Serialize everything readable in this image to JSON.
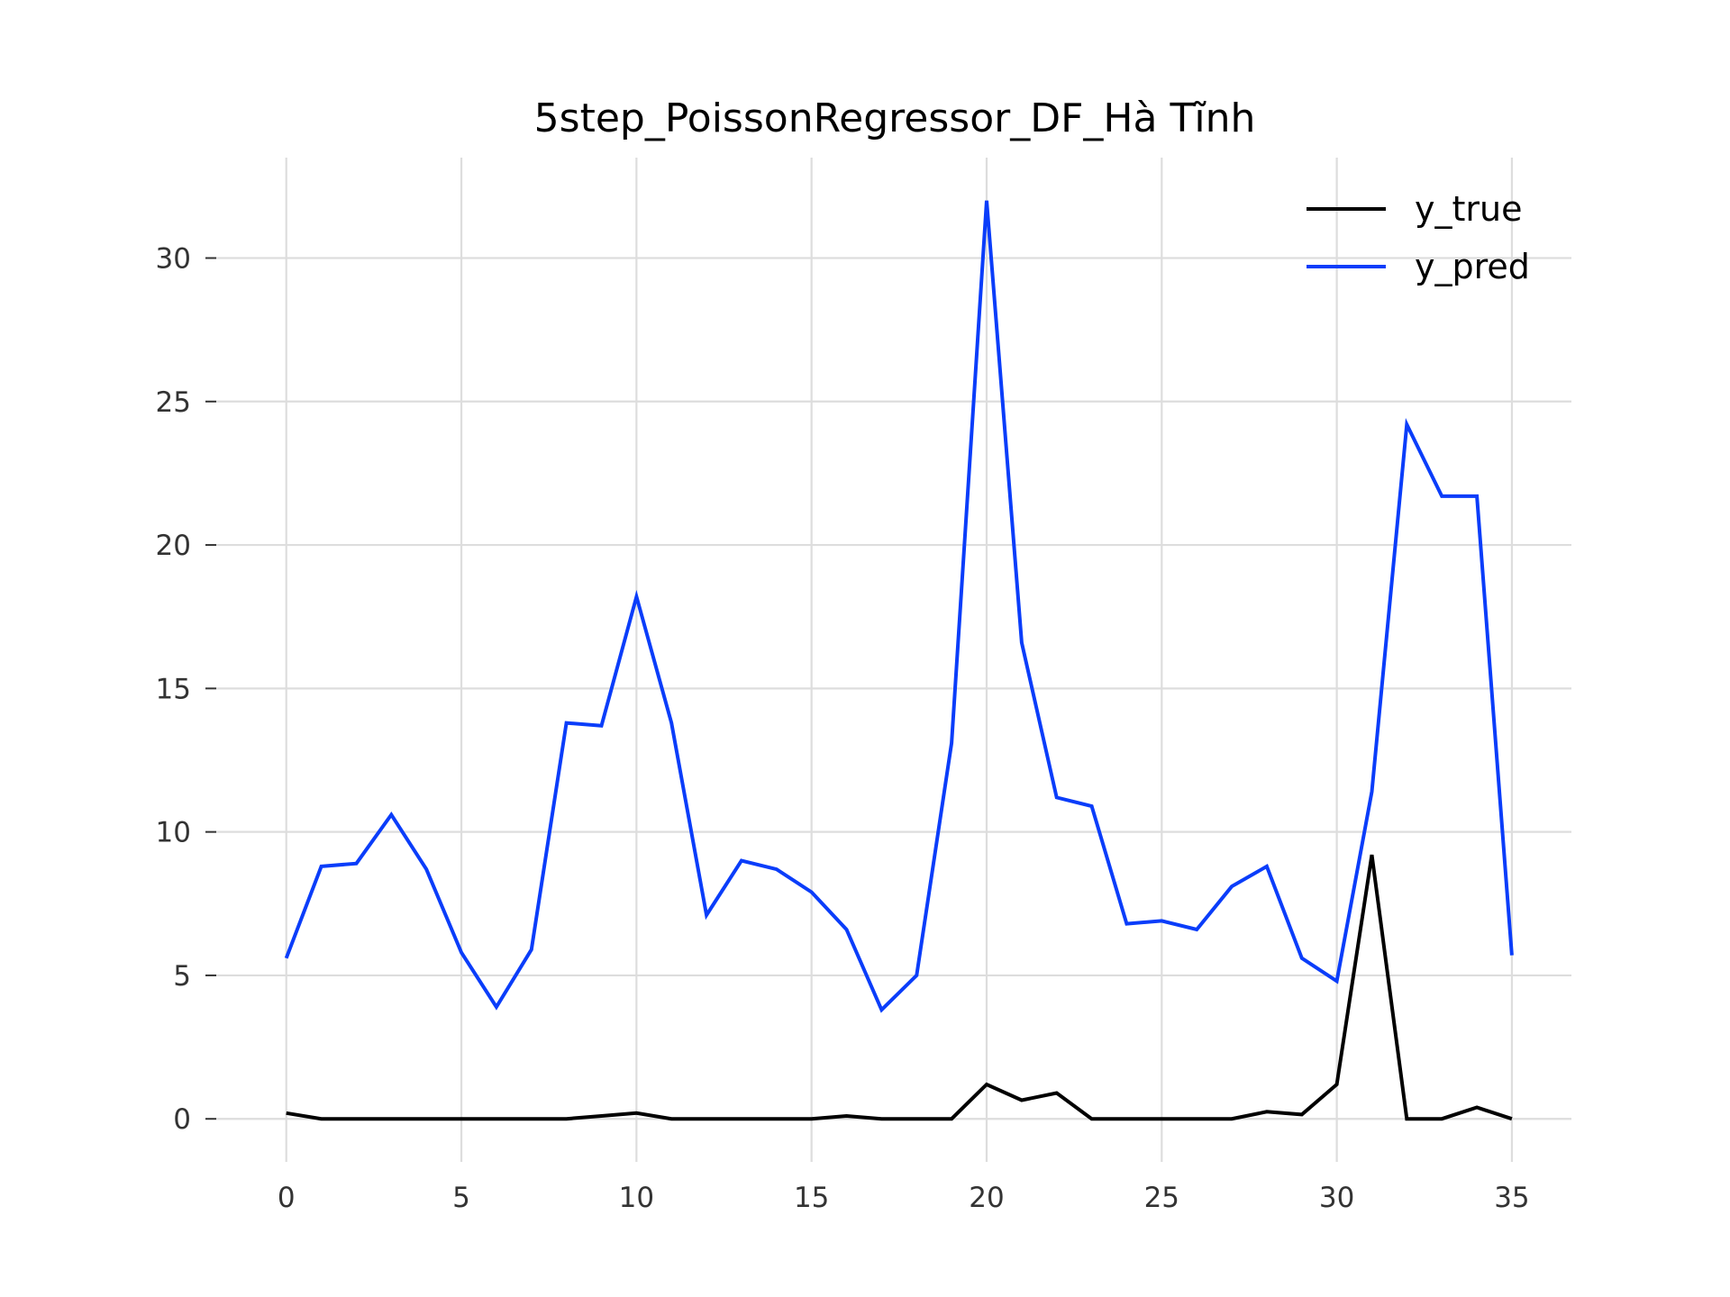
{
  "chart_data": {
    "type": "line",
    "title": "5step_PoissonRegressor_DF_Hà Tĩnh",
    "xlabel": "",
    "ylabel": "",
    "xlim": [
      -2,
      36.7
    ],
    "ylim": [
      -1.5,
      33.5
    ],
    "xticks": [
      0,
      5,
      10,
      15,
      20,
      25,
      30,
      35
    ],
    "yticks": [
      0,
      5,
      10,
      15,
      20,
      25,
      30
    ],
    "grid": true,
    "legend_position": "top-right",
    "x": [
      0,
      1,
      2,
      3,
      4,
      5,
      6,
      7,
      8,
      9,
      10,
      11,
      12,
      13,
      14,
      15,
      16,
      17,
      18,
      19,
      20,
      21,
      22,
      23,
      24,
      25,
      26,
      27,
      28,
      29,
      30,
      31,
      32,
      33,
      34,
      35
    ],
    "series": [
      {
        "name": "y_true",
        "color": "#000000",
        "values": [
          0.2,
          0,
          0,
          0,
          0,
          0,
          0,
          0,
          0,
          0.1,
          0.2,
          0,
          0,
          0,
          0,
          0,
          0.1,
          0,
          0,
          0,
          1.2,
          0.65,
          0.9,
          0,
          0,
          0,
          0,
          0,
          0.25,
          0.15,
          1.2,
          9.2,
          0,
          0,
          0.4,
          0
        ]
      },
      {
        "name": "y_pred",
        "color": "#0a3dfa",
        "values": [
          5.6,
          8.8,
          8.9,
          10.6,
          8.7,
          5.8,
          3.9,
          5.9,
          13.8,
          13.7,
          18.2,
          13.8,
          7.1,
          9.0,
          8.7,
          7.9,
          6.6,
          3.8,
          5.0,
          13.1,
          32.0,
          16.6,
          11.2,
          10.9,
          6.8,
          6.9,
          6.6,
          8.1,
          8.8,
          5.6,
          4.8,
          11.4,
          24.2,
          21.7,
          21.7,
          5.7
        ]
      }
    ]
  }
}
